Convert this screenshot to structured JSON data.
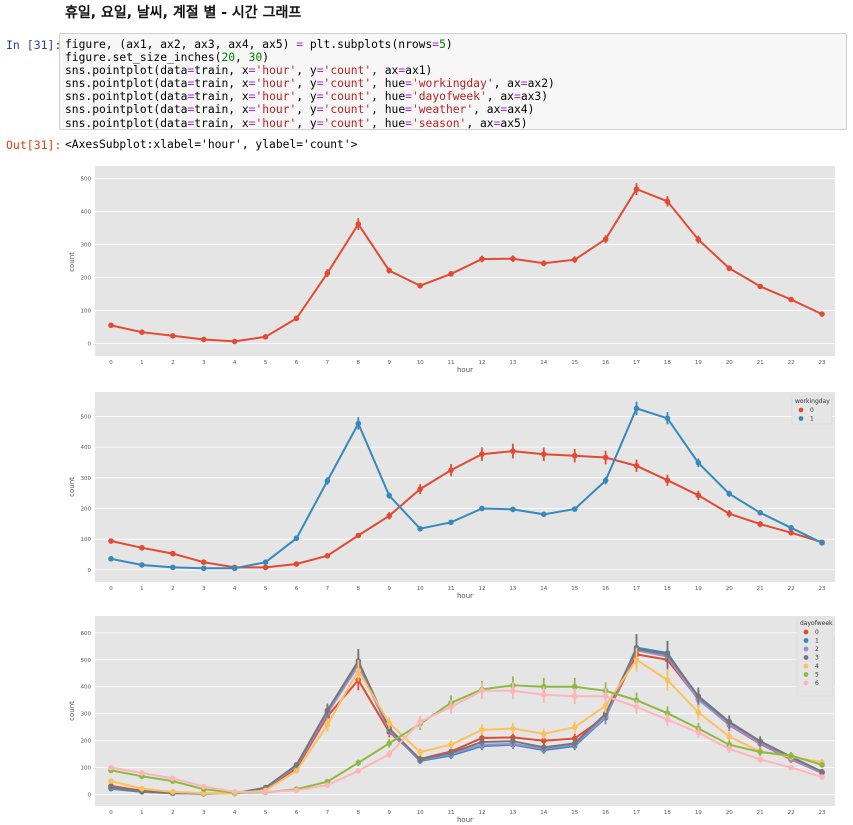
{
  "notebook": {
    "heading": "휴일, 요일, 날씨, 계절 별 - 시간 그래프",
    "in_prompt": "In [31]:",
    "out_prompt": "Out[31]:",
    "code_lines": [
      [
        [
          "figure, (ax1, ax2, ax3, ax4, ax5) ",
          ""
        ],
        [
          "=",
          "op"
        ],
        [
          " plt.subplots(nrows",
          ""
        ],
        [
          "=",
          "op"
        ],
        [
          "5",
          "num"
        ],
        [
          ")",
          ""
        ]
      ],
      [
        [
          "figure.set_size_inches(",
          ""
        ],
        [
          "20",
          "num"
        ],
        [
          ", ",
          ""
        ],
        [
          "30",
          "num"
        ],
        [
          ")",
          ""
        ]
      ],
      [
        [
          "sns.pointplot(data",
          ""
        ],
        [
          "=",
          "op"
        ],
        [
          "train, x",
          ""
        ],
        [
          "=",
          "op"
        ],
        [
          "'hour'",
          "str"
        ],
        [
          ", y",
          ""
        ],
        [
          "=",
          "op"
        ],
        [
          "'count'",
          "str"
        ],
        [
          ", ax",
          ""
        ],
        [
          "=",
          "op"
        ],
        [
          "ax1)",
          ""
        ]
      ],
      [
        [
          "sns.pointplot(data",
          ""
        ],
        [
          "=",
          "op"
        ],
        [
          "train, x",
          ""
        ],
        [
          "=",
          "op"
        ],
        [
          "'hour'",
          "str"
        ],
        [
          ", y",
          ""
        ],
        [
          "=",
          "op"
        ],
        [
          "'count'",
          "str"
        ],
        [
          ", hue",
          ""
        ],
        [
          "=",
          "op"
        ],
        [
          "'workingday'",
          "str"
        ],
        [
          ", ax",
          ""
        ],
        [
          "=",
          "op"
        ],
        [
          "ax2)",
          ""
        ]
      ],
      [
        [
          "sns.pointplot(data",
          ""
        ],
        [
          "=",
          "op"
        ],
        [
          "train, x",
          ""
        ],
        [
          "=",
          "op"
        ],
        [
          "'hour'",
          "str"
        ],
        [
          ", y",
          ""
        ],
        [
          "=",
          "op"
        ],
        [
          "'count'",
          "str"
        ],
        [
          ", hue",
          ""
        ],
        [
          "=",
          "op"
        ],
        [
          "'dayofweek'",
          "str"
        ],
        [
          ", ax",
          ""
        ],
        [
          "=",
          "op"
        ],
        [
          "ax3)",
          ""
        ]
      ],
      [
        [
          "sns.pointplot(data",
          ""
        ],
        [
          "=",
          "op"
        ],
        [
          "train, x",
          ""
        ],
        [
          "=",
          "op"
        ],
        [
          "'hour'",
          "str"
        ],
        [
          ", y",
          ""
        ],
        [
          "=",
          "op"
        ],
        [
          "'count'",
          "str"
        ],
        [
          ", hue",
          ""
        ],
        [
          "=",
          "op"
        ],
        [
          "'weather'",
          "str"
        ],
        [
          ", ax",
          ""
        ],
        [
          "=",
          "op"
        ],
        [
          "ax4)",
          ""
        ]
      ],
      [
        [
          "sns.pointplot(data",
          ""
        ],
        [
          "=",
          "op"
        ],
        [
          "train, x",
          ""
        ],
        [
          "=",
          "op"
        ],
        [
          "'hour'",
          "str"
        ],
        [
          ", y",
          ""
        ],
        [
          "=",
          "op"
        ],
        [
          "'count'",
          "str"
        ],
        [
          ", hue",
          ""
        ],
        [
          "=",
          "op"
        ],
        [
          "'season'",
          "str"
        ],
        [
          ", ax",
          ""
        ],
        [
          "=",
          "op"
        ],
        [
          "ax5)",
          ""
        ]
      ]
    ],
    "output_text": "<AxesSubplot:xlabel='hour', ylabel='count'>"
  },
  "colors": {
    "panel_bg": "#e5e5e5",
    "grid": "#ffffff",
    "red": "#e24a33",
    "blue": "#348abd"
  },
  "chart_data": [
    {
      "type": "line",
      "xlabel": "hour",
      "ylabel": "count",
      "ylim": [
        -20,
        520
      ],
      "yticks": [
        0,
        100,
        200,
        300,
        400,
        500
      ],
      "grid": true,
      "categories": [
        "0",
        "1",
        "2",
        "3",
        "4",
        "5",
        "6",
        "7",
        "8",
        "9",
        "10",
        "11",
        "12",
        "13",
        "14",
        "15",
        "16",
        "17",
        "18",
        "19",
        "20",
        "21",
        "22",
        "23"
      ],
      "series": [
        {
          "color": "#e24a33",
          "values": [
            55,
            34,
            23,
            12,
            6,
            20,
            76,
            213,
            362,
            221,
            175,
            211,
            256,
            257,
            243,
            254,
            316,
            468,
            431,
            315,
            228,
            173,
            133,
            89
          ],
          "err": [
            3,
            3,
            2,
            1,
            1,
            2,
            4,
            12,
            18,
            9,
            7,
            8,
            10,
            10,
            9,
            10,
            12,
            18,
            16,
            12,
            9,
            7,
            6,
            4
          ]
        }
      ]
    },
    {
      "type": "line",
      "xlabel": "hour",
      "ylabel": "count",
      "ylim": [
        -20,
        560
      ],
      "yticks": [
        0,
        100,
        200,
        300,
        400,
        500
      ],
      "grid": true,
      "legend": {
        "title": "workingday",
        "position": "top-right"
      },
      "categories": [
        "0",
        "1",
        "2",
        "3",
        "4",
        "5",
        "6",
        "7",
        "8",
        "9",
        "10",
        "11",
        "12",
        "13",
        "14",
        "15",
        "16",
        "17",
        "18",
        "19",
        "20",
        "21",
        "22",
        "23"
      ],
      "series": [
        {
          "name": "0",
          "color": "#e24a33",
          "values": [
            94,
            72,
            53,
            25,
            8,
            8,
            19,
            46,
            112,
            176,
            263,
            325,
            377,
            387,
            377,
            372,
            366,
            339,
            292,
            243,
            183,
            149,
            121,
            90
          ],
          "err": [
            6,
            5,
            4,
            3,
            1,
            1,
            2,
            3,
            8,
            12,
            16,
            20,
            22,
            24,
            22,
            22,
            22,
            20,
            18,
            15,
            12,
            10,
            9,
            7
          ]
        },
        {
          "name": "1",
          "color": "#348abd",
          "values": [
            36,
            16,
            8,
            5,
            5,
            25,
            103,
            290,
            477,
            242,
            134,
            155,
            200,
            197,
            181,
            198,
            291,
            526,
            494,
            349,
            248,
            186,
            137,
            88
          ],
          "err": [
            3,
            2,
            1,
            1,
            1,
            2,
            5,
            12,
            20,
            10,
            6,
            7,
            8,
            8,
            7,
            8,
            12,
            22,
            20,
            14,
            10,
            8,
            6,
            4
          ]
        }
      ]
    },
    {
      "type": "line",
      "xlabel": "hour",
      "ylabel": "count",
      "ylim": [
        -20,
        640
      ],
      "yticks": [
        0,
        100,
        200,
        300,
        400,
        500,
        600
      ],
      "grid": true,
      "legend": {
        "title": "dayofweek",
        "position": "top-right"
      },
      "categories": [
        "0",
        "1",
        "2",
        "3",
        "4",
        "5",
        "6",
        "7",
        "8",
        "9",
        "10",
        "11",
        "12",
        "13",
        "14",
        "15",
        "16",
        "17",
        "18",
        "19",
        "20",
        "21",
        "22",
        "23"
      ],
      "series": [
        {
          "name": "0",
          "color": "#e24a33",
          "values": [
            32,
            14,
            6,
            4,
            4,
            22,
            98,
            290,
            425,
            232,
            132,
            160,
            210,
            212,
            200,
            208,
            290,
            520,
            500,
            355,
            258,
            188,
            130,
            80
          ],
          "err": [
            4,
            3,
            2,
            1,
            1,
            3,
            10,
            25,
            38,
            20,
            12,
            14,
            18,
            18,
            17,
            18,
            25,
            45,
            42,
            30,
            22,
            16,
            12,
            8
          ]
        },
        {
          "name": "1",
          "color": "#348abd",
          "values": [
            22,
            10,
            5,
            3,
            5,
            25,
            108,
            308,
            485,
            240,
            125,
            145,
            180,
            185,
            165,
            180,
            285,
            545,
            525,
            360,
            265,
            195,
            135,
            82
          ],
          "err": [
            3,
            2,
            1,
            1,
            1,
            3,
            10,
            25,
            40,
            20,
            12,
            13,
            15,
            16,
            14,
            15,
            24,
            48,
            45,
            30,
            22,
            16,
            12,
            8
          ]
        },
        {
          "name": "2",
          "color": "#988ed5",
          "values": [
            26,
            11,
            5,
            3,
            5,
            24,
            105,
            302,
            478,
            238,
            128,
            150,
            185,
            188,
            170,
            185,
            288,
            535,
            512,
            352,
            260,
            190,
            132,
            80
          ],
          "err": [
            3,
            2,
            1,
            1,
            1,
            3,
            10,
            25,
            40,
            20,
            12,
            13,
            15,
            16,
            14,
            15,
            24,
            46,
            44,
            30,
            22,
            16,
            12,
            8
          ]
        },
        {
          "name": "3",
          "color": "#777777",
          "values": [
            28,
            12,
            6,
            4,
            5,
            26,
            110,
            312,
            495,
            245,
            130,
            155,
            195,
            198,
            175,
            190,
            300,
            540,
            520,
            365,
            270,
            198,
            140,
            85
          ],
          "err": [
            3,
            2,
            1,
            1,
            1,
            3,
            10,
            26,
            45,
            20,
            12,
            13,
            16,
            16,
            14,
            16,
            25,
            55,
            50,
            32,
            24,
            18,
            13,
            8
          ]
        },
        {
          "name": "4",
          "color": "#fbc15e",
          "values": [
            50,
            22,
            10,
            5,
            4,
            16,
            88,
            258,
            460,
            265,
            158,
            185,
            240,
            245,
            225,
            250,
            330,
            500,
            425,
            305,
            215,
            160,
            140,
            120
          ],
          "err": [
            5,
            3,
            2,
            1,
            1,
            2,
            9,
            24,
            40,
            22,
            14,
            16,
            20,
            21,
            19,
            21,
            28,
            45,
            40,
            28,
            20,
            15,
            13,
            11
          ]
        },
        {
          "name": "5",
          "color": "#8eba42",
          "values": [
            90,
            68,
            50,
            20,
            7,
            8,
            20,
            48,
            118,
            190,
            262,
            340,
            390,
            405,
            400,
            400,
            385,
            350,
            302,
            245,
            185,
            158,
            145,
            110
          ],
          "err": [
            6,
            5,
            4,
            3,
            1,
            1,
            3,
            5,
            12,
            16,
            22,
            28,
            32,
            34,
            33,
            33,
            31,
            28,
            25,
            20,
            16,
            14,
            13,
            10
          ]
        },
        {
          "name": "6",
          "color": "#ffb5b8",
          "values": [
            100,
            80,
            60,
            30,
            10,
            10,
            16,
            35,
            88,
            150,
            270,
            325,
            385,
            385,
            370,
            365,
            365,
            325,
            278,
            230,
            170,
            130,
            100,
            65
          ],
          "err": [
            7,
            6,
            5,
            3,
            1,
            1,
            2,
            4,
            9,
            14,
            22,
            26,
            31,
            31,
            30,
            29,
            29,
            26,
            23,
            19,
            15,
            12,
            9,
            7
          ]
        }
      ]
    }
  ]
}
